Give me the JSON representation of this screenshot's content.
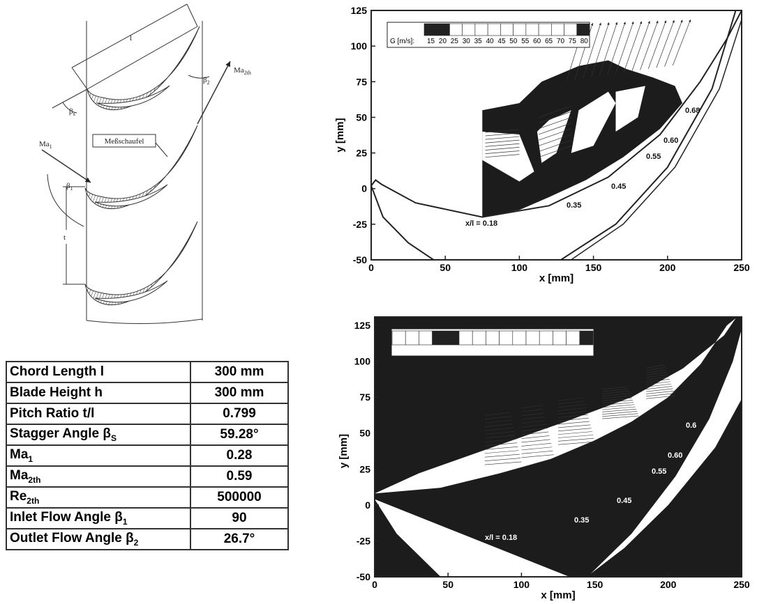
{
  "diagram": {
    "labels": [
      {
        "text": "l"
      },
      {
        "text": "β",
        "sub": "2"
      },
      {
        "text": "Ma",
        "sub": "2th"
      },
      {
        "text": "β",
        "sub": "s"
      },
      {
        "text": "Ma",
        "sub": "1"
      },
      {
        "text": "Meßschaufel"
      },
      {
        "text": "β",
        "sub": "1"
      },
      {
        "text": "t"
      }
    ]
  },
  "table": {
    "rows": [
      [
        {
          "text": "Chord Length l"
        },
        "300 mm"
      ],
      [
        {
          "text": "Blade Height h"
        },
        "300 mm"
      ],
      [
        {
          "text": "Pitch Ratio t/l"
        },
        "0.799"
      ],
      [
        {
          "text": "Stagger Angle β",
          "sub": "S"
        },
        "59.28°"
      ],
      [
        {
          "text": "Ma",
          "sub": "1"
        },
        "0.28"
      ],
      [
        {
          "text": "Ma",
          "sub": "2th"
        },
        "0.59"
      ],
      [
        {
          "text": "Re",
          "sub": "2th"
        },
        "500000"
      ],
      [
        {
          "text": "Inlet Flow Angle β",
          "sub": "1"
        },
        "90"
      ],
      [
        {
          "text": "Outlet Flow Angle β",
          "sub": "2"
        },
        "26.7°"
      ]
    ]
  },
  "plots": [
    {
      "xlabel": "x [mm]",
      "ylabel": "y [mm]",
      "xlim": [
        0,
        250
      ],
      "ylim": [
        -50,
        125
      ],
      "xticks": [
        0,
        50,
        100,
        150,
        200,
        250
      ],
      "yticks": [
        -50,
        -25,
        0,
        25,
        50,
        75,
        100,
        125
      ],
      "legend": {
        "label": "G [m/s]:",
        "values": [
          15,
          20,
          25,
          30,
          35,
          40,
          45,
          50,
          55,
          60,
          65,
          70,
          75,
          80
        ],
        "colors": [
          "#222",
          "#222",
          "#fff",
          "#fff",
          "#fff",
          "#fff",
          "#fff",
          "#fff",
          "#fff",
          "#fff",
          "#fff",
          "#fff",
          "#222"
        ]
      },
      "annotations": [
        "x/l = 0.18",
        "0.35",
        "0.45",
        "0.55",
        "0.60",
        "0.68"
      ]
    },
    {
      "xlabel": "x [mm]",
      "ylabel": "y [mm]",
      "xlim": [
        0,
        250
      ],
      "ylim": [
        -50,
        125
      ],
      "xticks": [
        0,
        50,
        100,
        150,
        200,
        250
      ],
      "yticks": [
        -50,
        -25,
        0,
        25,
        50,
        75,
        100,
        125
      ],
      "legend": {
        "colors": [
          "#fff",
          "#fff",
          "#fff",
          "#222",
          "#222",
          "#fff",
          "#fff",
          "#fff",
          "#fff",
          "#fff",
          "#fff",
          "#fff",
          "#fff",
          "#fff",
          "#222"
        ]
      },
      "annotations": [
        "x/l = 0.18",
        "0.35",
        "0.45",
        "0.60",
        "0.55",
        "0.6"
      ]
    }
  ]
}
